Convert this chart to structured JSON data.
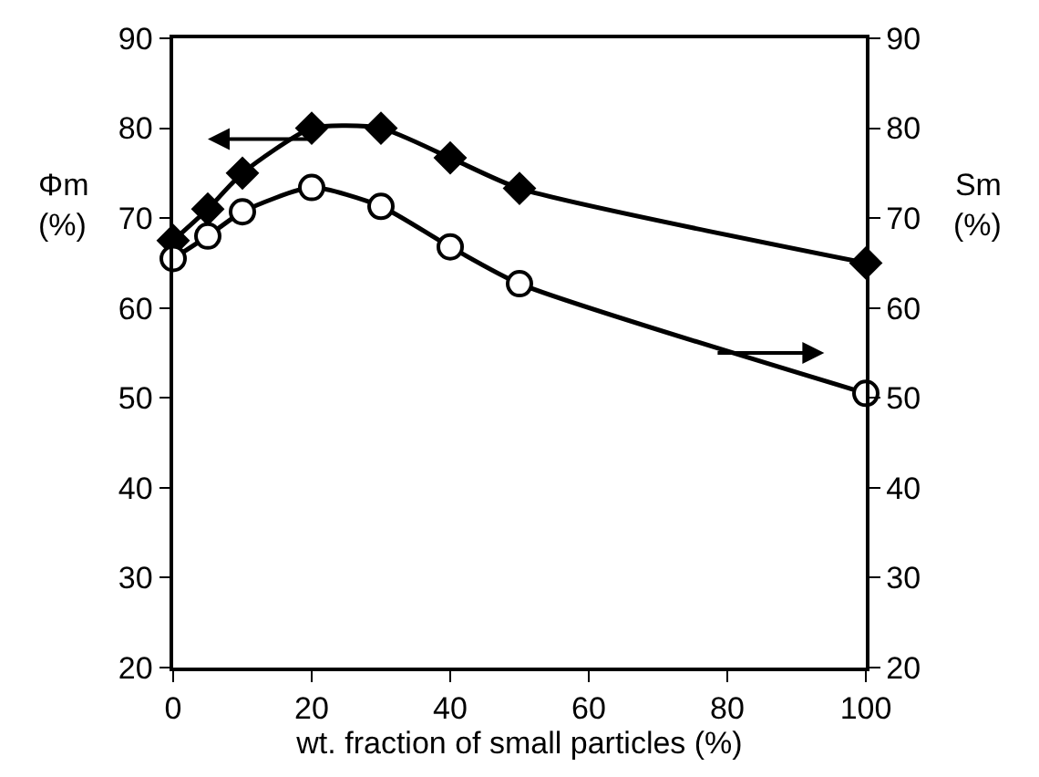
{
  "chart_data": {
    "type": "line",
    "xlabel": "wt. fraction of small particles (%)",
    "ylabel": "Φm (%)",
    "y2label": "Sm (%)",
    "x": [
      0,
      5,
      10,
      20,
      30,
      40,
      50,
      100
    ],
    "series": [
      {
        "color": "#000000",
        "marker": "diamond",
        "values": [
          67.5,
          71,
          75,
          80,
          80,
          76.7,
          73.3,
          65
        ]
      },
      {
        "color": "#000000",
        "marker": "circle",
        "axis": "y2",
        "values": [
          65.5,
          68,
          70.7,
          73.4,
          71.3,
          66.8,
          62.7,
          50.5
        ]
      }
    ],
    "xlim": [
      0,
      100
    ],
    "xticks": [
      0,
      20,
      40,
      60,
      80,
      100
    ],
    "ylim": [
      20,
      90
    ],
    "yticks": [
      20,
      30,
      40,
      50,
      60,
      70,
      80,
      90
    ],
    "y2lim": [
      20,
      90
    ],
    "y2ticks": [
      20,
      30,
      40,
      50,
      60,
      70,
      80,
      90
    ],
    "legend": false,
    "line_style": "solid"
  }
}
